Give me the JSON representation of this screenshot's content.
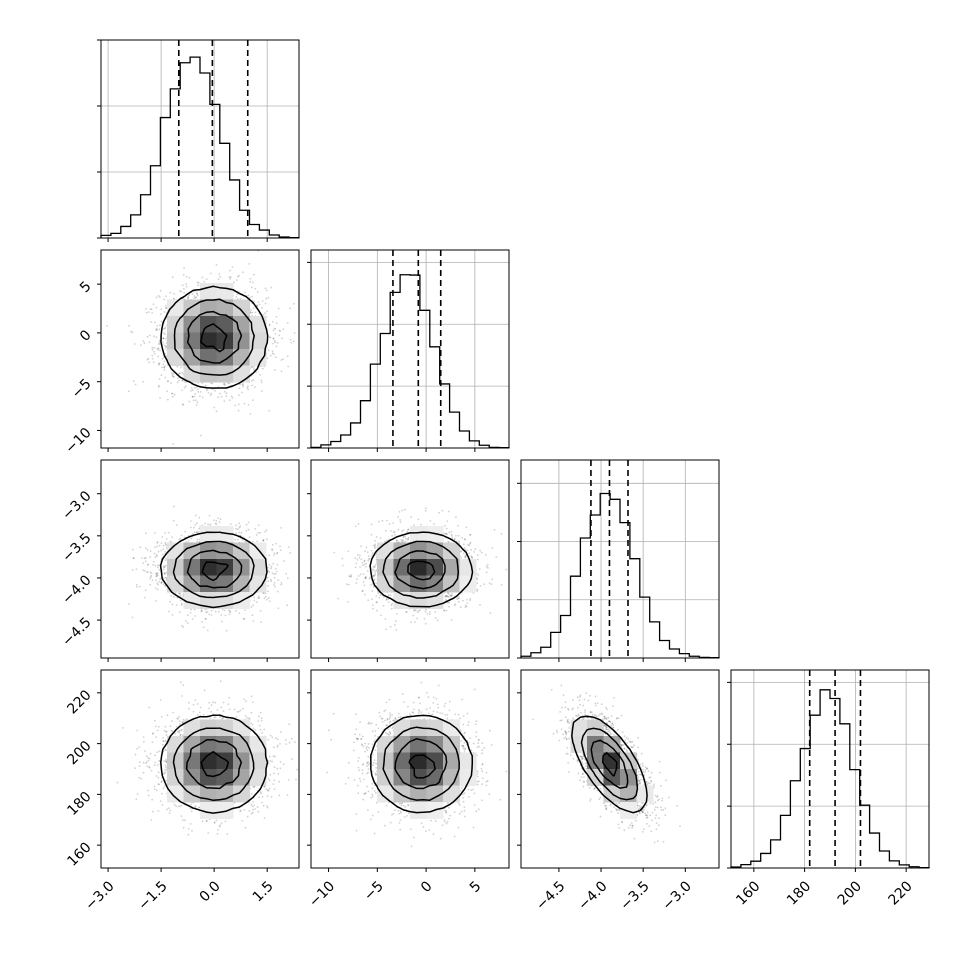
{
  "chart_data": {
    "type": "corner",
    "title": "",
    "parameters": [
      {
        "label": "",
        "range": [
          -3.2,
          2.4
        ],
        "ticks": [
          -3.0,
          -1.5,
          0.0,
          1.5
        ],
        "tick_labels": [
          "−3.0",
          "−1.5",
          "0.0",
          "1.5"
        ],
        "quantiles": [
          -1.0,
          -0.05,
          0.95
        ],
        "mean": 0.0,
        "sd": 0.75
      },
      {
        "label": "",
        "range": [
          -11.8,
          8.5
        ],
        "ticks": [
          -10,
          -5,
          0,
          5
        ],
        "tick_labels": [
          "−10",
          "−5",
          "0",
          "5"
        ],
        "quantiles": [
          -3.4,
          -0.8,
          1.5
        ],
        "mean": -0.5,
        "sd": 2.6
      },
      {
        "label": "",
        "range": [
          -4.95,
          -2.6
        ],
        "ticks": [
          -4.5,
          -4.0,
          -3.5,
          -3.0
        ],
        "tick_labels": [
          "−4.5",
          "−4.0",
          "−3.5",
          "−3.0"
        ],
        "quantiles": [
          -4.12,
          -3.9,
          -3.68
        ],
        "mean": -3.9,
        "sd": 0.22
      },
      {
        "label": "",
        "range": [
          151,
          229
        ],
        "ticks": [
          160,
          180,
          200,
          220
        ],
        "tick_labels": [
          "160",
          "180",
          "200",
          "220"
        ],
        "quantiles": [
          182,
          192,
          202
        ],
        "mean": 192,
        "sd": 9.5
      }
    ],
    "correlations": [
      [
        0,
        1,
        0.0
      ],
      [
        0,
        2,
        0.0
      ],
      [
        0,
        3,
        0.0
      ],
      [
        1,
        2,
        0.0
      ],
      [
        1,
        3,
        0.0
      ],
      [
        2,
        3,
        -0.65
      ]
    ],
    "histograms": [
      {
        "param": 0,
        "counts": [
          8,
          14,
          35,
          70,
          131,
          219,
          365,
          452,
          531,
          548,
          500,
          405,
          287,
          176,
          84,
          41,
          24,
          9,
          3,
          1
        ],
        "ylim": [
          0,
          600
        ],
        "ticks": [
          0,
          200,
          400,
          600
        ]
      },
      {
        "param": 1,
        "counts": [
          2,
          10,
          21,
          42,
          81,
          153,
          271,
          370,
          503,
          560,
          559,
          445,
          327,
          207,
          116,
          55,
          23,
          9,
          2,
          1
        ],
        "ylim": [
          0,
          640
        ],
        "ticks": [
          0,
          200,
          400,
          600
        ]
      },
      {
        "param": 2,
        "counts": [
          6,
          18,
          37,
          88,
          146,
          281,
          412,
          491,
          565,
          545,
          465,
          341,
          209,
          124,
          60,
          31,
          15,
          6,
          2,
          1
        ],
        "ylim": [
          0,
          680
        ],
        "ticks": [
          0,
          200,
          400,
          600
        ]
      },
      {
        "param": 3,
        "counts": [
          3,
          11,
          22,
          47,
          91,
          170,
          282,
          386,
          494,
          576,
          548,
          466,
          318,
          203,
          113,
          55,
          23,
          10,
          4,
          1
        ],
        "ylim": [
          0,
          640
        ],
        "ticks": [
          0,
          200,
          400,
          600
        ]
      }
    ],
    "contour_levels": [
      0.118,
      0.393,
      0.675,
      0.865
    ],
    "grid": true,
    "colors": {
      "line": "#000000",
      "grid": "#b0b0b0",
      "points": "#000000",
      "background": "#ffffff"
    }
  }
}
